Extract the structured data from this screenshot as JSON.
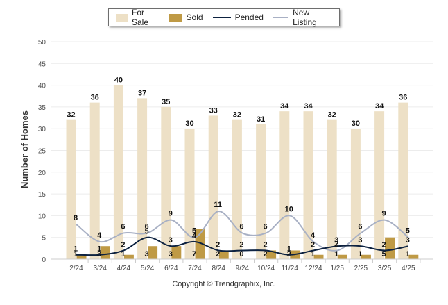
{
  "chart_data": {
    "type": "bar",
    "ylabel": "Number of Homes",
    "xlabel": "",
    "ylim": [
      0,
      50
    ],
    "yticks": [
      0,
      5,
      10,
      15,
      20,
      25,
      30,
      35,
      40,
      45,
      50
    ],
    "grid": true,
    "legend_position": "top-center",
    "categories": [
      "2/24",
      "3/24",
      "4/24",
      "5/24",
      "6/24",
      "7/24",
      "8/24",
      "9/24",
      "10/24",
      "11/24",
      "12/24",
      "1/25",
      "2/25",
      "3/25",
      "4/25"
    ],
    "series": [
      {
        "name": "For Sale",
        "kind": "bar",
        "color": "#ede0c6",
        "values": [
          32,
          36,
          40,
          37,
          35,
          30,
          33,
          32,
          31,
          34,
          34,
          32,
          30,
          34,
          36
        ]
      },
      {
        "name": "Sold",
        "kind": "bar",
        "color": "#bf9a45",
        "values": [
          1,
          3,
          1,
          3,
          3,
          7,
          2,
          0,
          2,
          2,
          1,
          1,
          1,
          5,
          1
        ]
      },
      {
        "name": "Pended",
        "kind": "line",
        "color": "#0d2240",
        "values": [
          1,
          1,
          2,
          5,
          3,
          4,
          2,
          2,
          2,
          1,
          2,
          3,
          3,
          2,
          3
        ]
      },
      {
        "name": "New Listing",
        "kind": "line",
        "color": "#a8b0c4",
        "values": [
          8,
          4,
          6,
          6,
          9,
          5,
          11,
          6,
          6,
          10,
          4,
          2,
          6,
          9,
          5
        ]
      }
    ]
  },
  "footer": {
    "copyright": "Copyright © Trendgraphix, Inc."
  }
}
